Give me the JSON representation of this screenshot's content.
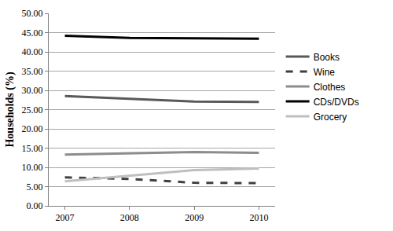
{
  "chart_data": {
    "type": "line",
    "y_label": "Households (%)",
    "categories": [
      "2007",
      "2008",
      "2009",
      "2010"
    ],
    "series": [
      {
        "name": "Books",
        "color": "#595959",
        "line_style": "solid",
        "values": [
          28.5,
          27.8,
          27.1,
          27.0
        ]
      },
      {
        "name": "Wine",
        "color": "#404040",
        "line_style": "dashed",
        "values": [
          7.4,
          7.0,
          6.0,
          5.9
        ]
      },
      {
        "name": "Clothes",
        "color": "#8c8c8c",
        "line_style": "solid",
        "values": [
          13.3,
          13.6,
          14.0,
          13.8
        ]
      },
      {
        "name": "CDs/DVDs",
        "color": "#000000",
        "line_style": "solid",
        "values": [
          44.2,
          43.6,
          43.5,
          43.4
        ]
      },
      {
        "name": "Grocery",
        "color": "#bfbfbf",
        "line_style": "solid",
        "values": [
          6.4,
          7.9,
          9.3,
          9.7
        ]
      }
    ],
    "ylim": [
      0,
      50
    ],
    "yticks": [
      {
        "value": 0,
        "label": "0.00"
      },
      {
        "value": 5,
        "label": "5.00"
      },
      {
        "value": 10,
        "label": "10.00"
      },
      {
        "value": 15,
        "label": "15.00"
      },
      {
        "value": 20,
        "label": "20.00"
      },
      {
        "value": 25,
        "label": "25.00"
      },
      {
        "value": 30,
        "label": "30.00"
      },
      {
        "value": 35,
        "label": "35.00"
      },
      {
        "value": 40,
        "label": "40.00"
      },
      {
        "value": 45,
        "label": "45.00"
      },
      {
        "value": 50,
        "label": "50.00"
      }
    ],
    "grid": true,
    "legend": "right"
  }
}
